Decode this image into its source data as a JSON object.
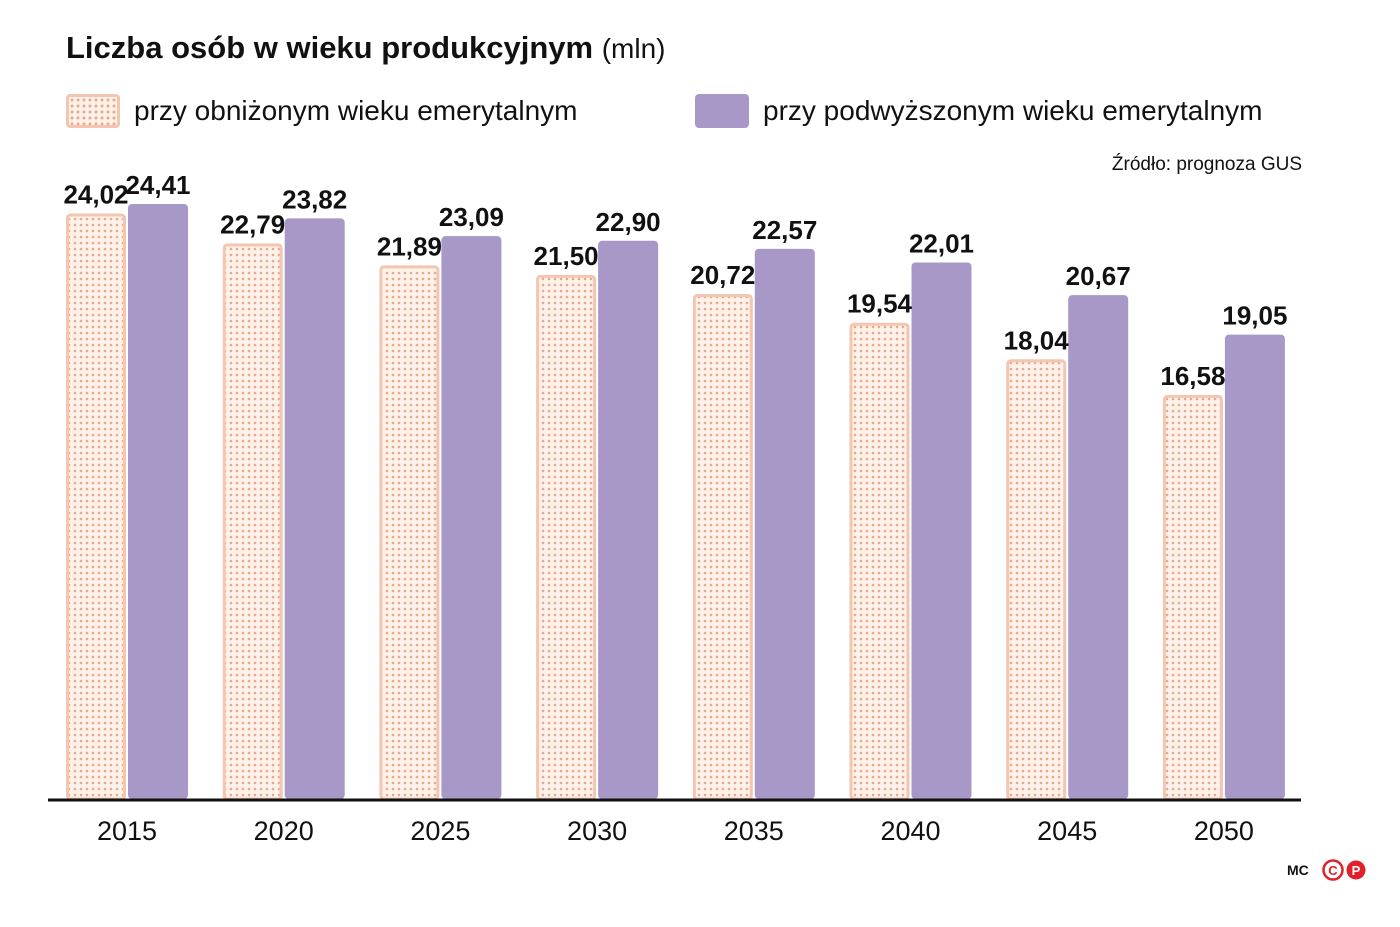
{
  "title": "Liczba osób w wieku produkcyjnym",
  "title_unit": "(mln)",
  "source": "Źródło: prognoza GUS",
  "credit": "MC",
  "logo_text": "CP",
  "colors": {
    "low_fill": "#fdf1ea",
    "low_border": "#f2c6b0",
    "low_dots": "#e8a98a",
    "high_fill": "#a898c8",
    "axis": "#111111",
    "logo": "#e0202a"
  },
  "chart_data": {
    "type": "bar",
    "title": "Liczba osób w wieku produkcyjnym (mln)",
    "categories": [
      "2015",
      "2020",
      "2025",
      "2030",
      "2035",
      "2040",
      "2045",
      "2050"
    ],
    "series": [
      {
        "name": "przy obniżonym wieku emerytalnym",
        "values": [
          24.02,
          22.79,
          21.89,
          21.5,
          20.72,
          19.54,
          18.04,
          16.58
        ],
        "labels": [
          "24,02",
          "22,79",
          "21,89",
          "21,50",
          "20,72",
          "19,54",
          "18,04",
          "16,58"
        ]
      },
      {
        "name": "przy podwyższonym wieku emerytalnym",
        "values": [
          24.41,
          23.82,
          23.09,
          22.9,
          22.57,
          22.01,
          20.67,
          19.05
        ],
        "labels": [
          "24,41",
          "23,82",
          "23,09",
          "22,90",
          "22,57",
          "22,01",
          "20,67",
          "19,05"
        ]
      }
    ],
    "ylim": [
      0,
      24.41
    ],
    "xlabel": "",
    "ylabel": "",
    "grid": false,
    "legend": "top"
  }
}
